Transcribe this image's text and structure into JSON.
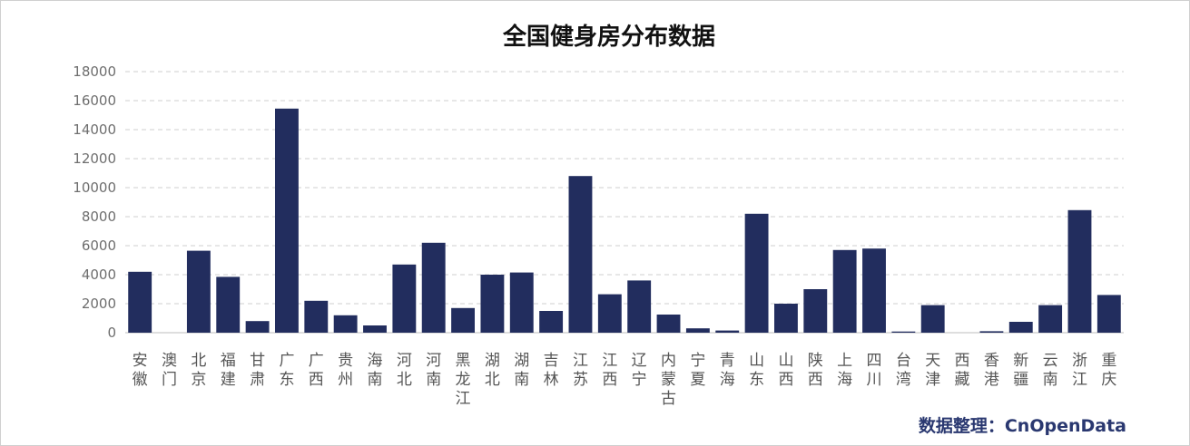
{
  "colors": {
    "bar": "#222d5e",
    "source_text": "#2a3870"
  },
  "chart_data": {
    "type": "bar",
    "title": "全国健身房分布数据",
    "xlabel": "",
    "ylabel": "",
    "ylim": [
      0,
      18000
    ],
    "yticks": [
      0,
      2000,
      4000,
      6000,
      8000,
      10000,
      12000,
      14000,
      16000,
      18000
    ],
    "grid": true,
    "categories": [
      "安徽",
      "澳门",
      "北京",
      "福建",
      "甘肃",
      "广东",
      "广西",
      "贵州",
      "海南",
      "河北",
      "河南",
      "黑龙江",
      "湖北",
      "湖南",
      "吉林",
      "江苏",
      "江西",
      "辽宁",
      "内蒙古",
      "宁夏",
      "青海",
      "山东",
      "山西",
      "陕西",
      "上海",
      "四川",
      "台湾",
      "天津",
      "西藏",
      "香港",
      "新疆",
      "云南",
      "浙江",
      "重庆"
    ],
    "values": [
      4200,
      0,
      5650,
      3850,
      800,
      15450,
      2200,
      1200,
      500,
      4700,
      6200,
      1700,
      4000,
      4150,
      1500,
      10800,
      2650,
      3600,
      1250,
      300,
      150,
      8200,
      2000,
      3000,
      5700,
      5800,
      80,
      1900,
      0,
      100,
      750,
      1900,
      8450,
      2600
    ]
  },
  "source_note": "数据整理：CnOpenData"
}
